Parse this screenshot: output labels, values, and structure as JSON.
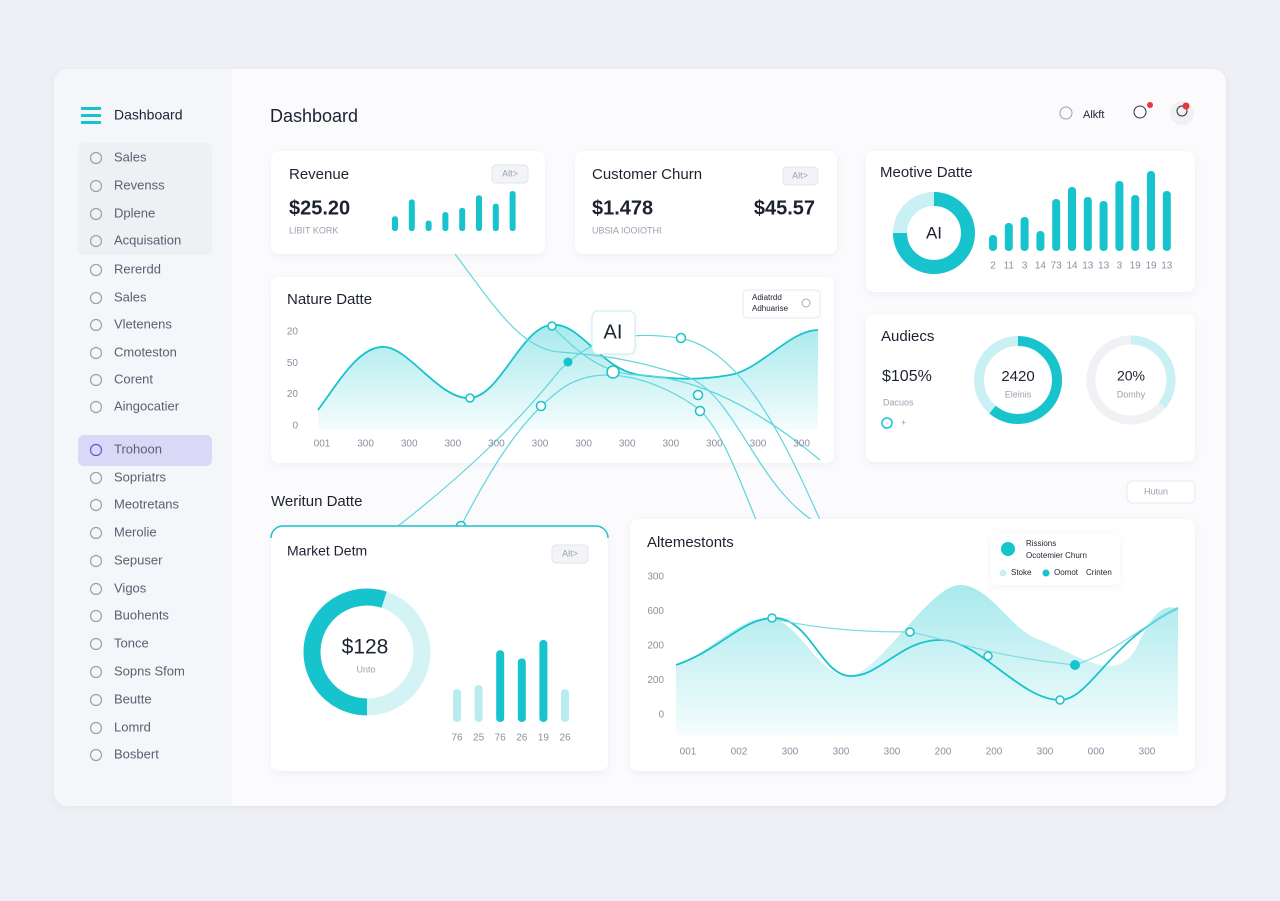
{
  "sidebar": {
    "title": "Dashboard",
    "items": [
      "Sales",
      "Revenss",
      "Dplene",
      "Acquisation",
      "Rererdd",
      "Sales",
      "Vletenens",
      "Cmoteston",
      "Corent",
      "Aingocatier",
      "Trohoon",
      "Sopriatrs",
      "Meotretans",
      "Merolie",
      "Sepuser",
      "Vigos",
      "Buohents",
      "Tonce",
      "Sopns Sfom",
      "Beutte",
      "Lomrd",
      "Bosbert"
    ]
  },
  "header": {
    "title": "Dashboard",
    "user": "Alkft"
  },
  "revenue": {
    "title": "Revenue",
    "button": "Alt>",
    "value": "$25.20",
    "caption": "LIBIT KORK",
    "bars": [
      14,
      30,
      10,
      18,
      22,
      34,
      26,
      38
    ]
  },
  "churn": {
    "title": "Customer Churn",
    "button": "Alt>",
    "value": "$1.478",
    "value2": "$45.57",
    "caption": "UBSIA IOOIOTHI"
  },
  "motive": {
    "title": "Meotive Datte",
    "donut_label": "AI",
    "bars": [
      16,
      28,
      34,
      20,
      52,
      64,
      54,
      50,
      70,
      56,
      80,
      60
    ],
    "labels": [
      "2",
      "11",
      "3",
      "14",
      "73",
      "14",
      "13",
      "13",
      "3",
      "19",
      "19",
      "13"
    ]
  },
  "nature": {
    "title": "Nature Datte",
    "legend": [
      "Adiatrdd",
      "Adhuarise"
    ],
    "y_labels": [
      "20",
      "50",
      "20",
      "0"
    ],
    "x_labels": [
      "001",
      "300",
      "300",
      "300",
      "300",
      "300",
      "300",
      "300",
      "300",
      "300",
      "300",
      "300"
    ],
    "badge": "AI"
  },
  "audience": {
    "title": "Audiecs",
    "value": "$105%",
    "caption": "Dacuos",
    "legend": "+",
    "donut1": {
      "value": "2420",
      "caption": "Eleinis"
    },
    "donut2": {
      "value": "20%",
      "caption": "Domhy"
    }
  },
  "section": {
    "title": "Weritun Datte",
    "button": "Hutun"
  },
  "market": {
    "title": "Market Detm",
    "button": "Alt>",
    "value": "$128",
    "caption": "Unto",
    "bars": [
      32,
      36,
      70,
      62,
      80,
      32
    ],
    "labels": [
      "76",
      "25",
      "76",
      "26",
      "19",
      "26"
    ]
  },
  "alt": {
    "title": "Altemestonts",
    "y_labels": [
      "300",
      "600",
      "200",
      "200",
      "0"
    ],
    "x_labels": [
      "001",
      "002",
      "300",
      "300",
      "300",
      "200",
      "200",
      "300",
      "000",
      "300"
    ],
    "popup": {
      "title": "Rissions",
      "subtitle": "Ocotemier Churn",
      "legend": [
        "Stoke",
        "Oomot",
        "Crinten"
      ]
    }
  }
}
